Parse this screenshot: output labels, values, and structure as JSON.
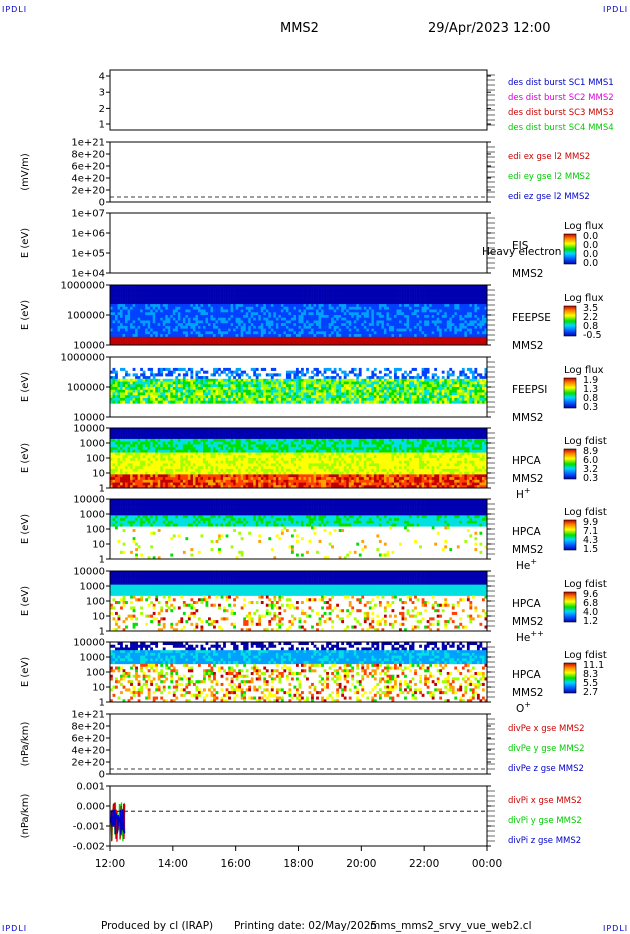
{
  "corner_label": "IPDLI",
  "header": {
    "spacecraft": "MMS2",
    "date": "29/Apr/2023 12:00"
  },
  "footer": {
    "produced_by": "Produced by cl (IRAP)",
    "printing_date": "Printing date: 02/May/2025",
    "file": "mms_mms2_srvy_vue_web2.cl"
  },
  "colors": {
    "red": "#cc0000",
    "green": "#00cc00",
    "blue": "#0000cc",
    "magenta": "#dd00dd"
  },
  "chart_data": {
    "type": "stacked-panels",
    "x_axis": {
      "ticks": [
        "12:00",
        "14:00",
        "16:00",
        "18:00",
        "20:00",
        "22:00",
        "00:00"
      ]
    },
    "panels": [
      {
        "id": "p1",
        "type": "line",
        "ylabel": "",
        "yticks": [
          "4",
          "3",
          "2",
          "1"
        ],
        "legend": [
          {
            "text": "des dist burst SC1 MMS1",
            "color": "#0000cc"
          },
          {
            "text": "des dist burst SC2 MMS2",
            "color": "#dd00dd"
          },
          {
            "text": "des dist burst SC3 MMS3",
            "color": "#cc0000"
          },
          {
            "text": "des dist burst SC4 MMS4",
            "color": "#00cc00"
          }
        ]
      },
      {
        "id": "p2",
        "type": "line",
        "ylabel": "(mV/m)",
        "yticks": [
          "1e+21",
          "8e+20",
          "6e+20",
          "4e+20",
          "2e+20",
          "0"
        ],
        "legend": [
          {
            "text": "edi ex gse l2 MMS2",
            "color": "#cc0000"
          },
          {
            "text": "edi ey gse l2 MMS2",
            "color": "#00cc00"
          },
          {
            "text": "edi ez gse l2 MMS2",
            "color": "#0000cc"
          }
        ]
      },
      {
        "id": "p3",
        "type": "spectrogram",
        "ylabel": "E (eV)",
        "yticks": [
          "1e+07",
          "1e+06",
          "1e+05",
          "1e+04"
        ],
        "instrument": [
          "EIS",
          "MMS2"
        ],
        "overlay": "Heavy electron to",
        "colorbar": {
          "label": "Log flux",
          "ticks": [
            "0.0",
            "0.0",
            "0.0",
            "0.0"
          ]
        }
      },
      {
        "id": "p4",
        "type": "spectrogram",
        "ylabel": "E (eV)",
        "yticks": [
          "1000000",
          "100000",
          "10000"
        ],
        "instrument": [
          "FEEPSE",
          "MMS2"
        ],
        "colorbar": {
          "label": "Log flux",
          "ticks": [
            "3.5",
            "2.2",
            "0.8",
            "-0.5"
          ]
        }
      },
      {
        "id": "p5",
        "type": "spectrogram",
        "ylabel": "E (eV)",
        "yticks": [
          "1000000",
          "100000",
          "10000"
        ],
        "instrument": [
          "FEEPSI",
          "MMS2"
        ],
        "colorbar": {
          "label": "Log flux",
          "ticks": [
            "1.9",
            "1.3",
            "0.8",
            "0.3"
          ]
        }
      },
      {
        "id": "p6",
        "type": "spectrogram",
        "ylabel": "E (eV)",
        "yticks": [
          "10000",
          "1000",
          "100",
          "10",
          "1"
        ],
        "instrument": [
          "HPCA",
          "MMS2"
        ],
        "species": "H",
        "charge": "+",
        "colorbar": {
          "label": "Log fdist",
          "ticks": [
            "8.9",
            "6.0",
            "3.2",
            "0.3"
          ]
        }
      },
      {
        "id": "p7",
        "type": "spectrogram",
        "ylabel": "E (eV)",
        "yticks": [
          "10000",
          "1000",
          "100",
          "10",
          "1"
        ],
        "instrument": [
          "HPCA",
          "MMS2"
        ],
        "species": "He",
        "charge": "+",
        "colorbar": {
          "label": "Log fdist",
          "ticks": [
            "9.9",
            "7.1",
            "4.3",
            "1.5"
          ]
        }
      },
      {
        "id": "p8",
        "type": "spectrogram",
        "ylabel": "E (eV)",
        "yticks": [
          "10000",
          "1000",
          "100",
          "10",
          "1"
        ],
        "instrument": [
          "HPCA",
          "MMS2"
        ],
        "species": "He",
        "charge": "++",
        "colorbar": {
          "label": "Log fdist",
          "ticks": [
            "9.6",
            "6.8",
            "4.0",
            "1.2"
          ]
        }
      },
      {
        "id": "p9",
        "type": "spectrogram",
        "ylabel": "E (eV)",
        "yticks": [
          "10000",
          "1000",
          "100",
          "10",
          "1"
        ],
        "instrument": [
          "HPCA",
          "MMS2"
        ],
        "species": "O",
        "charge": "+",
        "colorbar": {
          "label": "Log fdist",
          "ticks": [
            "11.1",
            "8.3",
            "5.5",
            "2.7"
          ]
        }
      },
      {
        "id": "p10",
        "type": "line",
        "ylabel": "(nPa/km)",
        "yticks": [
          "1e+21",
          "8e+20",
          "6e+20",
          "4e+20",
          "2e+20",
          "0"
        ],
        "legend": [
          {
            "text": "divPe x gse MMS2",
            "color": "#cc0000"
          },
          {
            "text": "divPe y gse MMS2",
            "color": "#00cc00"
          },
          {
            "text": "divPe z gse MMS2",
            "color": "#0000cc"
          }
        ]
      },
      {
        "id": "p11",
        "type": "line",
        "ylabel": "(nPa/km)",
        "yticks": [
          "0.001",
          "0.000",
          "-0.001",
          "-0.002"
        ],
        "legend": [
          {
            "text": "divPi x gse MMS2",
            "color": "#cc0000"
          },
          {
            "text": "divPi y gse MMS2",
            "color": "#00cc00"
          },
          {
            "text": "divPi z gse MMS2",
            "color": "#0000cc"
          }
        ]
      }
    ]
  }
}
